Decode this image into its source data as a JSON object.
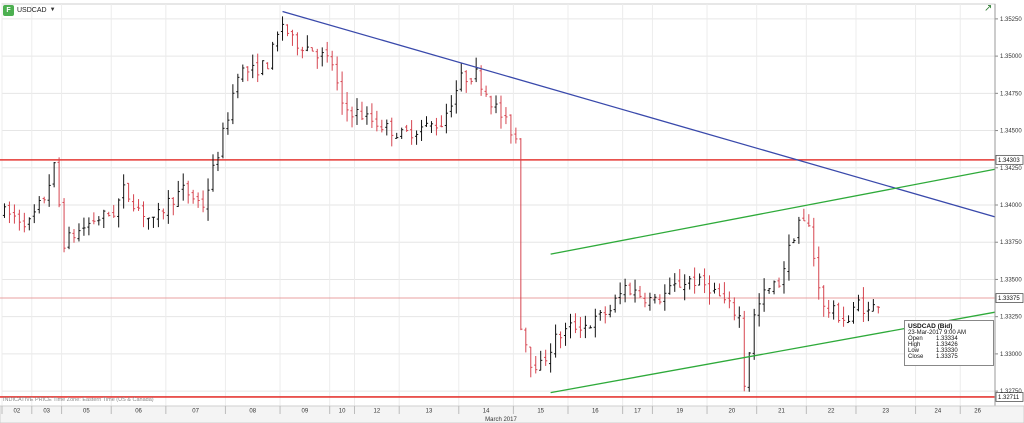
{
  "header": {
    "symbol": "USDCAD",
    "symbol_icon": "chart-icon",
    "dropdown_icon": "caret-down-icon",
    "corner_icon": "trend-up-icon"
  },
  "footer": {
    "note": "INDICATIVE PRICE   Time Zone: Eastern Time (US & Canada)",
    "month_label": "March 2017"
  },
  "tooltip": {
    "title": "USDCAD (Bid)",
    "datetime": "23-Mar-2017 9:00 AM",
    "rows": [
      {
        "label": "Open",
        "value": "1.33334"
      },
      {
        "label": "High",
        "value": "1.33426"
      },
      {
        "label": "Low",
        "value": "1.33330"
      },
      {
        "label": "Close",
        "value": "1.33375"
      }
    ]
  },
  "chart_data": {
    "type": "ohlc",
    "title": "USDCAD",
    "y_axis_position": "right",
    "ylim": [
      1.3265,
      1.3535
    ],
    "y_ticks": [
      1.3525,
      1.35,
      1.3475,
      1.345,
      1.3425,
      1.34,
      1.3375,
      1.335,
      1.3325,
      1.33,
      1.3275
    ],
    "y_tick_labels": [
      "1.35250",
      "1.35000",
      "1.34750",
      "1.34500",
      "1.34250",
      "1.34000",
      "1.33750",
      "1.33500",
      "1.33250",
      "1.33000",
      "1.32750"
    ],
    "x_tick_labels": [
      "02",
      "03",
      "05",
      "06",
      "07",
      "08",
      "09",
      "10",
      "12",
      "13",
      "14",
      "15",
      "16",
      "17",
      "19",
      "20",
      "21",
      "22",
      "23",
      "24",
      "26"
    ],
    "x_tick_slots": [
      0,
      6,
      12,
      22,
      33,
      45,
      56,
      66,
      71,
      80,
      92,
      103,
      114,
      125,
      131,
      142,
      152,
      162,
      172,
      184,
      193
    ],
    "total_slots": 200,
    "x_axis_title": "March 2017",
    "color_up": "#111111",
    "color_down": "#d64550",
    "horizontal_levels": [
      {
        "value": 1.34303,
        "label": "1.34303",
        "color": "#e53935"
      },
      {
        "value": 1.32711,
        "label": "1.32711",
        "color": "#e53935"
      },
      {
        "value": 1.33375,
        "label": "1.33375",
        "color": "#e8a0a0"
      }
    ],
    "trendlines": [
      {
        "name": "resistance",
        "color": "#3949ab",
        "from": {
          "slot": 56,
          "y": 1.353
        },
        "to": {
          "slot": 200,
          "y": 1.3392
        }
      },
      {
        "name": "channel-top",
        "color": "#2eaa3a",
        "from": {
          "slot": 110,
          "y": 1.3367
        },
        "to": {
          "slot": 200,
          "y": 1.3424
        }
      },
      {
        "name": "channel-bottom",
        "color": "#2eaa3a",
        "from": {
          "slot": 110,
          "y": 1.3274
        },
        "to": {
          "slot": 200,
          "y": 1.3328
        }
      }
    ],
    "price_path": [
      {
        "slot": 0,
        "y": 1.3395
      },
      {
        "slot": 5,
        "y": 1.3388
      },
      {
        "slot": 8,
        "y": 1.3405
      },
      {
        "slot": 10,
        "y": 1.3425
      },
      {
        "slot": 12,
        "y": 1.3375
      },
      {
        "slot": 14,
        "y": 1.338
      },
      {
        "slot": 18,
        "y": 1.339
      },
      {
        "slot": 22,
        "y": 1.3395
      },
      {
        "slot": 24,
        "y": 1.341
      },
      {
        "slot": 27,
        "y": 1.3398
      },
      {
        "slot": 30,
        "y": 1.3388
      },
      {
        "slot": 33,
        "y": 1.3402
      },
      {
        "slot": 36,
        "y": 1.341
      },
      {
        "slot": 40,
        "y": 1.34
      },
      {
        "slot": 43,
        "y": 1.3435
      },
      {
        "slot": 45,
        "y": 1.346
      },
      {
        "slot": 47,
        "y": 1.349
      },
      {
        "slot": 50,
        "y": 1.349
      },
      {
        "slot": 53,
        "y": 1.3495
      },
      {
        "slot": 56,
        "y": 1.3522
      },
      {
        "slot": 58,
        "y": 1.351
      },
      {
        "slot": 62,
        "y": 1.3505
      },
      {
        "slot": 66,
        "y": 1.3495
      },
      {
        "slot": 68,
        "y": 1.3465
      },
      {
        "slot": 71,
        "y": 1.3462
      },
      {
        "slot": 75,
        "y": 1.3455
      },
      {
        "slot": 80,
        "y": 1.3447
      },
      {
        "slot": 84,
        "y": 1.3452
      },
      {
        "slot": 88,
        "y": 1.3455
      },
      {
        "slot": 92,
        "y": 1.3485
      },
      {
        "slot": 95,
        "y": 1.3488
      },
      {
        "slot": 98,
        "y": 1.347
      },
      {
        "slot": 101,
        "y": 1.3455
      },
      {
        "slot": 103,
        "y": 1.3445
      },
      {
        "slot": 104,
        "y": 1.332
      },
      {
        "slot": 106,
        "y": 1.3295
      },
      {
        "slot": 108,
        "y": 1.3292
      },
      {
        "slot": 111,
        "y": 1.331
      },
      {
        "slot": 114,
        "y": 1.3318
      },
      {
        "slot": 118,
        "y": 1.332
      },
      {
        "slot": 122,
        "y": 1.333
      },
      {
        "slot": 125,
        "y": 1.3345
      },
      {
        "slot": 128,
        "y": 1.334
      },
      {
        "slot": 131,
        "y": 1.3335
      },
      {
        "slot": 135,
        "y": 1.3345
      },
      {
        "slot": 138,
        "y": 1.335
      },
      {
        "slot": 142,
        "y": 1.3345
      },
      {
        "slot": 145,
        "y": 1.3335
      },
      {
        "slot": 148,
        "y": 1.3325
      },
      {
        "slot": 149,
        "y": 1.328
      },
      {
        "slot": 151,
        "y": 1.3325
      },
      {
        "slot": 153,
        "y": 1.334
      },
      {
        "slot": 156,
        "y": 1.3348
      },
      {
        "slot": 158,
        "y": 1.337
      },
      {
        "slot": 160,
        "y": 1.339
      },
      {
        "slot": 162,
        "y": 1.3385
      },
      {
        "slot": 163,
        "y": 1.3365
      },
      {
        "slot": 165,
        "y": 1.333
      },
      {
        "slot": 167,
        "y": 1.3328
      },
      {
        "slot": 170,
        "y": 1.3322
      },
      {
        "slot": 172,
        "y": 1.3335
      },
      {
        "slot": 174,
        "y": 1.3328
      },
      {
        "slot": 176,
        "y": 1.3335
      }
    ]
  }
}
